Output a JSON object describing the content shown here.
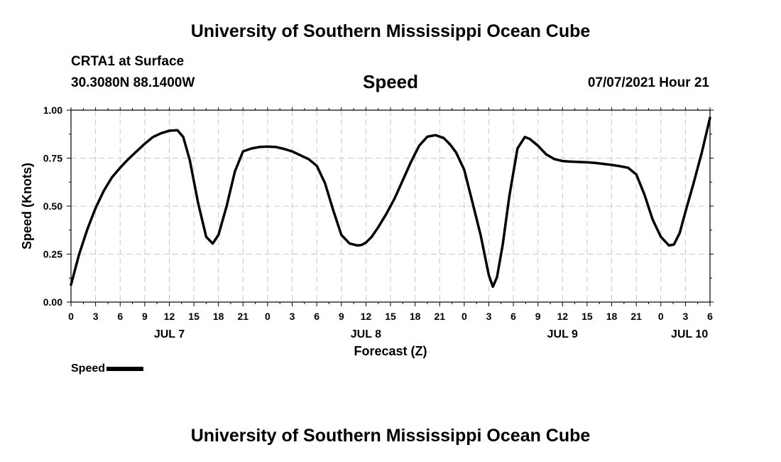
{
  "header": {
    "title": "University of Southern Mississippi Ocean Cube",
    "station": "CRTA1 at Surface",
    "coordinates": "30.3080N  88.1400W",
    "parameter": "Speed",
    "issued": "07/07/2021 Hour 21"
  },
  "footer": {
    "title": "University of Southern Mississippi Ocean Cube"
  },
  "legend": {
    "label": "Speed"
  },
  "colors": {
    "line": "#000000",
    "grid": "#c8c8c8"
  },
  "chart_data": {
    "type": "line",
    "title": "Speed",
    "xlabel": "Forecast (Z)",
    "ylabel": "Speed (Knots)",
    "x_unit": "hours since 07/07/2021 00Z",
    "xlim": [
      0,
      78
    ],
    "ylim": [
      0,
      1
    ],
    "grid": true,
    "y_ticks": [
      0,
      0.25,
      0.5,
      0.75,
      1.0
    ],
    "y_tick_labels": [
      "0.00",
      "0.25",
      "0.50",
      "0.75",
      "1.00"
    ],
    "x_ticks": [
      0,
      3,
      6,
      9,
      12,
      15,
      18,
      21,
      24,
      27,
      30,
      33,
      36,
      39,
      42,
      45,
      48,
      51,
      54,
      57,
      60,
      63,
      66,
      69,
      72,
      75,
      78
    ],
    "x_tick_labels": [
      "0",
      "3",
      "6",
      "9",
      "12",
      "15",
      "18",
      "21",
      "0",
      "3",
      "6",
      "9",
      "12",
      "15",
      "18",
      "21",
      "0",
      "3",
      "6",
      "9",
      "12",
      "15",
      "18",
      "21",
      "0",
      "3",
      "6"
    ],
    "date_labels": [
      {
        "label": "JUL 7",
        "x": 12
      },
      {
        "label": "JUL 8",
        "x": 36
      },
      {
        "label": "JUL 9",
        "x": 60
      },
      {
        "label": "JUL 10",
        "x": 75.5
      }
    ],
    "series": [
      {
        "name": "Speed",
        "x": [
          0,
          1,
          2,
          3,
          4,
          5,
          6,
          7,
          8,
          9,
          10,
          11,
          12,
          13,
          13.7,
          14.5,
          15.5,
          16.5,
          17.3,
          18,
          19,
          20,
          21,
          22,
          23,
          24,
          25,
          26,
          27,
          28,
          29,
          30,
          31,
          32,
          33,
          34,
          35,
          35.5,
          36,
          36.7,
          37.5,
          38.5,
          39.5,
          40.5,
          41.5,
          42.5,
          43.5,
          44.5,
          45.5,
          46.3,
          47,
          48,
          49,
          50,
          51,
          51.5,
          52,
          52.7,
          53.5,
          54.5,
          55.4,
          56,
          57,
          58,
          59,
          60,
          61,
          62,
          63,
          64,
          65,
          66,
          67,
          68,
          69,
          70,
          71,
          72,
          73,
          73.6,
          74.3,
          75,
          76,
          77,
          78
        ],
        "values": [
          0.09,
          0.25,
          0.38,
          0.49,
          0.58,
          0.65,
          0.7,
          0.745,
          0.785,
          0.825,
          0.86,
          0.88,
          0.893,
          0.895,
          0.86,
          0.74,
          0.52,
          0.34,
          0.305,
          0.35,
          0.5,
          0.68,
          0.785,
          0.8,
          0.808,
          0.81,
          0.808,
          0.798,
          0.785,
          0.765,
          0.745,
          0.71,
          0.62,
          0.48,
          0.35,
          0.305,
          0.295,
          0.298,
          0.31,
          0.34,
          0.39,
          0.46,
          0.54,
          0.635,
          0.73,
          0.815,
          0.862,
          0.87,
          0.855,
          0.82,
          0.78,
          0.69,
          0.52,
          0.35,
          0.14,
          0.08,
          0.13,
          0.3,
          0.55,
          0.8,
          0.86,
          0.85,
          0.815,
          0.77,
          0.745,
          0.735,
          0.732,
          0.73,
          0.728,
          0.725,
          0.72,
          0.715,
          0.708,
          0.7,
          0.665,
          0.56,
          0.43,
          0.34,
          0.295,
          0.3,
          0.36,
          0.47,
          0.62,
          0.78,
          0.96
        ]
      }
    ]
  }
}
